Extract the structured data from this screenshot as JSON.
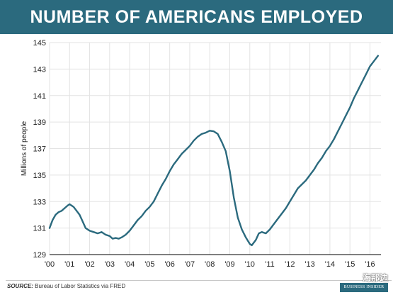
{
  "header": {
    "title": "NUMBER OF AMERICANS EMPLOYED"
  },
  "footer": {
    "source_label": "SOURCE:",
    "source_text": " Bureau of Labor Statistics via FRED",
    "logo": "BUSINESS INSIDER",
    "watermark": "海那边"
  },
  "colors": {
    "title_bar": "#2b6a7e",
    "line": "#2b6a7e",
    "grid": "#e3e3e3"
  },
  "chart_data": {
    "type": "line",
    "title": "NUMBER OF AMERICANS EMPLOYED",
    "ylabel": "Millions of people",
    "xlabel": "",
    "ylim": [
      129,
      145
    ],
    "xlim": [
      2000,
      2016.55
    ],
    "grid": true,
    "yticks": [
      129,
      131,
      133,
      135,
      137,
      139,
      141,
      143,
      145
    ],
    "xticks": [
      {
        "value": 2000,
        "label": "'00"
      },
      {
        "value": 2001,
        "label": "'01"
      },
      {
        "value": 2002,
        "label": "'02"
      },
      {
        "value": 2003,
        "label": "'03"
      },
      {
        "value": 2004,
        "label": "'04"
      },
      {
        "value": 2005,
        "label": "'05"
      },
      {
        "value": 2006,
        "label": "'06"
      },
      {
        "value": 2007,
        "label": "'07"
      },
      {
        "value": 2008,
        "label": "'08"
      },
      {
        "value": 2009,
        "label": "'09"
      },
      {
        "value": 2010,
        "label": "'10"
      },
      {
        "value": 2011,
        "label": "'11"
      },
      {
        "value": 2012,
        "label": "'12"
      },
      {
        "value": 2013,
        "label": "'13"
      },
      {
        "value": 2014,
        "label": "'14"
      },
      {
        "value": 2015,
        "label": "'15"
      },
      {
        "value": 2016,
        "label": "'16"
      }
    ],
    "series": [
      {
        "name": "",
        "x": [
          2000.0,
          2000.15,
          2000.3,
          2000.45,
          2000.6,
          2000.75,
          2000.9,
          2001.0,
          2001.2,
          2001.35,
          2001.5,
          2001.65,
          2001.8,
          2002.0,
          2002.2,
          2002.4,
          2002.6,
          2002.8,
          2003.0,
          2003.15,
          2003.3,
          2003.45,
          2003.6,
          2003.8,
          2004.0,
          2004.2,
          2004.4,
          2004.6,
          2004.8,
          2005.0,
          2005.2,
          2005.4,
          2005.6,
          2005.8,
          2006.0,
          2006.2,
          2006.4,
          2006.6,
          2006.8,
          2007.0,
          2007.2,
          2007.4,
          2007.6,
          2007.8,
          2008.0,
          2008.2,
          2008.4,
          2008.6,
          2008.8,
          2009.0,
          2009.2,
          2009.4,
          2009.6,
          2009.8,
          2010.0,
          2010.1,
          2010.3,
          2010.45,
          2010.6,
          2010.8,
          2011.0,
          2011.2,
          2011.4,
          2011.6,
          2011.8,
          2012.0,
          2012.2,
          2012.4,
          2012.6,
          2012.8,
          2013.0,
          2013.2,
          2013.4,
          2013.6,
          2013.8,
          2014.0,
          2014.2,
          2014.4,
          2014.6,
          2014.8,
          2015.0,
          2015.2,
          2015.4,
          2015.6,
          2015.8,
          2016.0,
          2016.2,
          2016.4
        ],
        "values": [
          131.0,
          131.6,
          132.0,
          132.2,
          132.3,
          132.5,
          132.7,
          132.8,
          132.6,
          132.3,
          132.0,
          131.5,
          131.0,
          130.8,
          130.7,
          130.6,
          130.7,
          130.5,
          130.4,
          130.2,
          130.25,
          130.2,
          130.3,
          130.5,
          130.8,
          131.2,
          131.6,
          131.9,
          132.3,
          132.6,
          133.0,
          133.6,
          134.2,
          134.7,
          135.3,
          135.8,
          136.2,
          136.6,
          136.9,
          137.2,
          137.6,
          137.9,
          138.1,
          138.2,
          138.35,
          138.3,
          138.1,
          137.5,
          136.8,
          135.3,
          133.3,
          131.8,
          130.9,
          130.3,
          129.8,
          129.7,
          130.1,
          130.6,
          130.7,
          130.6,
          130.9,
          131.3,
          131.7,
          132.1,
          132.5,
          133.0,
          133.5,
          134.0,
          134.3,
          134.6,
          135.0,
          135.4,
          135.9,
          136.3,
          136.8,
          137.2,
          137.7,
          138.3,
          138.9,
          139.5,
          140.1,
          140.8,
          141.4,
          142.0,
          142.6,
          143.2,
          143.6,
          144.0
        ]
      }
    ]
  }
}
